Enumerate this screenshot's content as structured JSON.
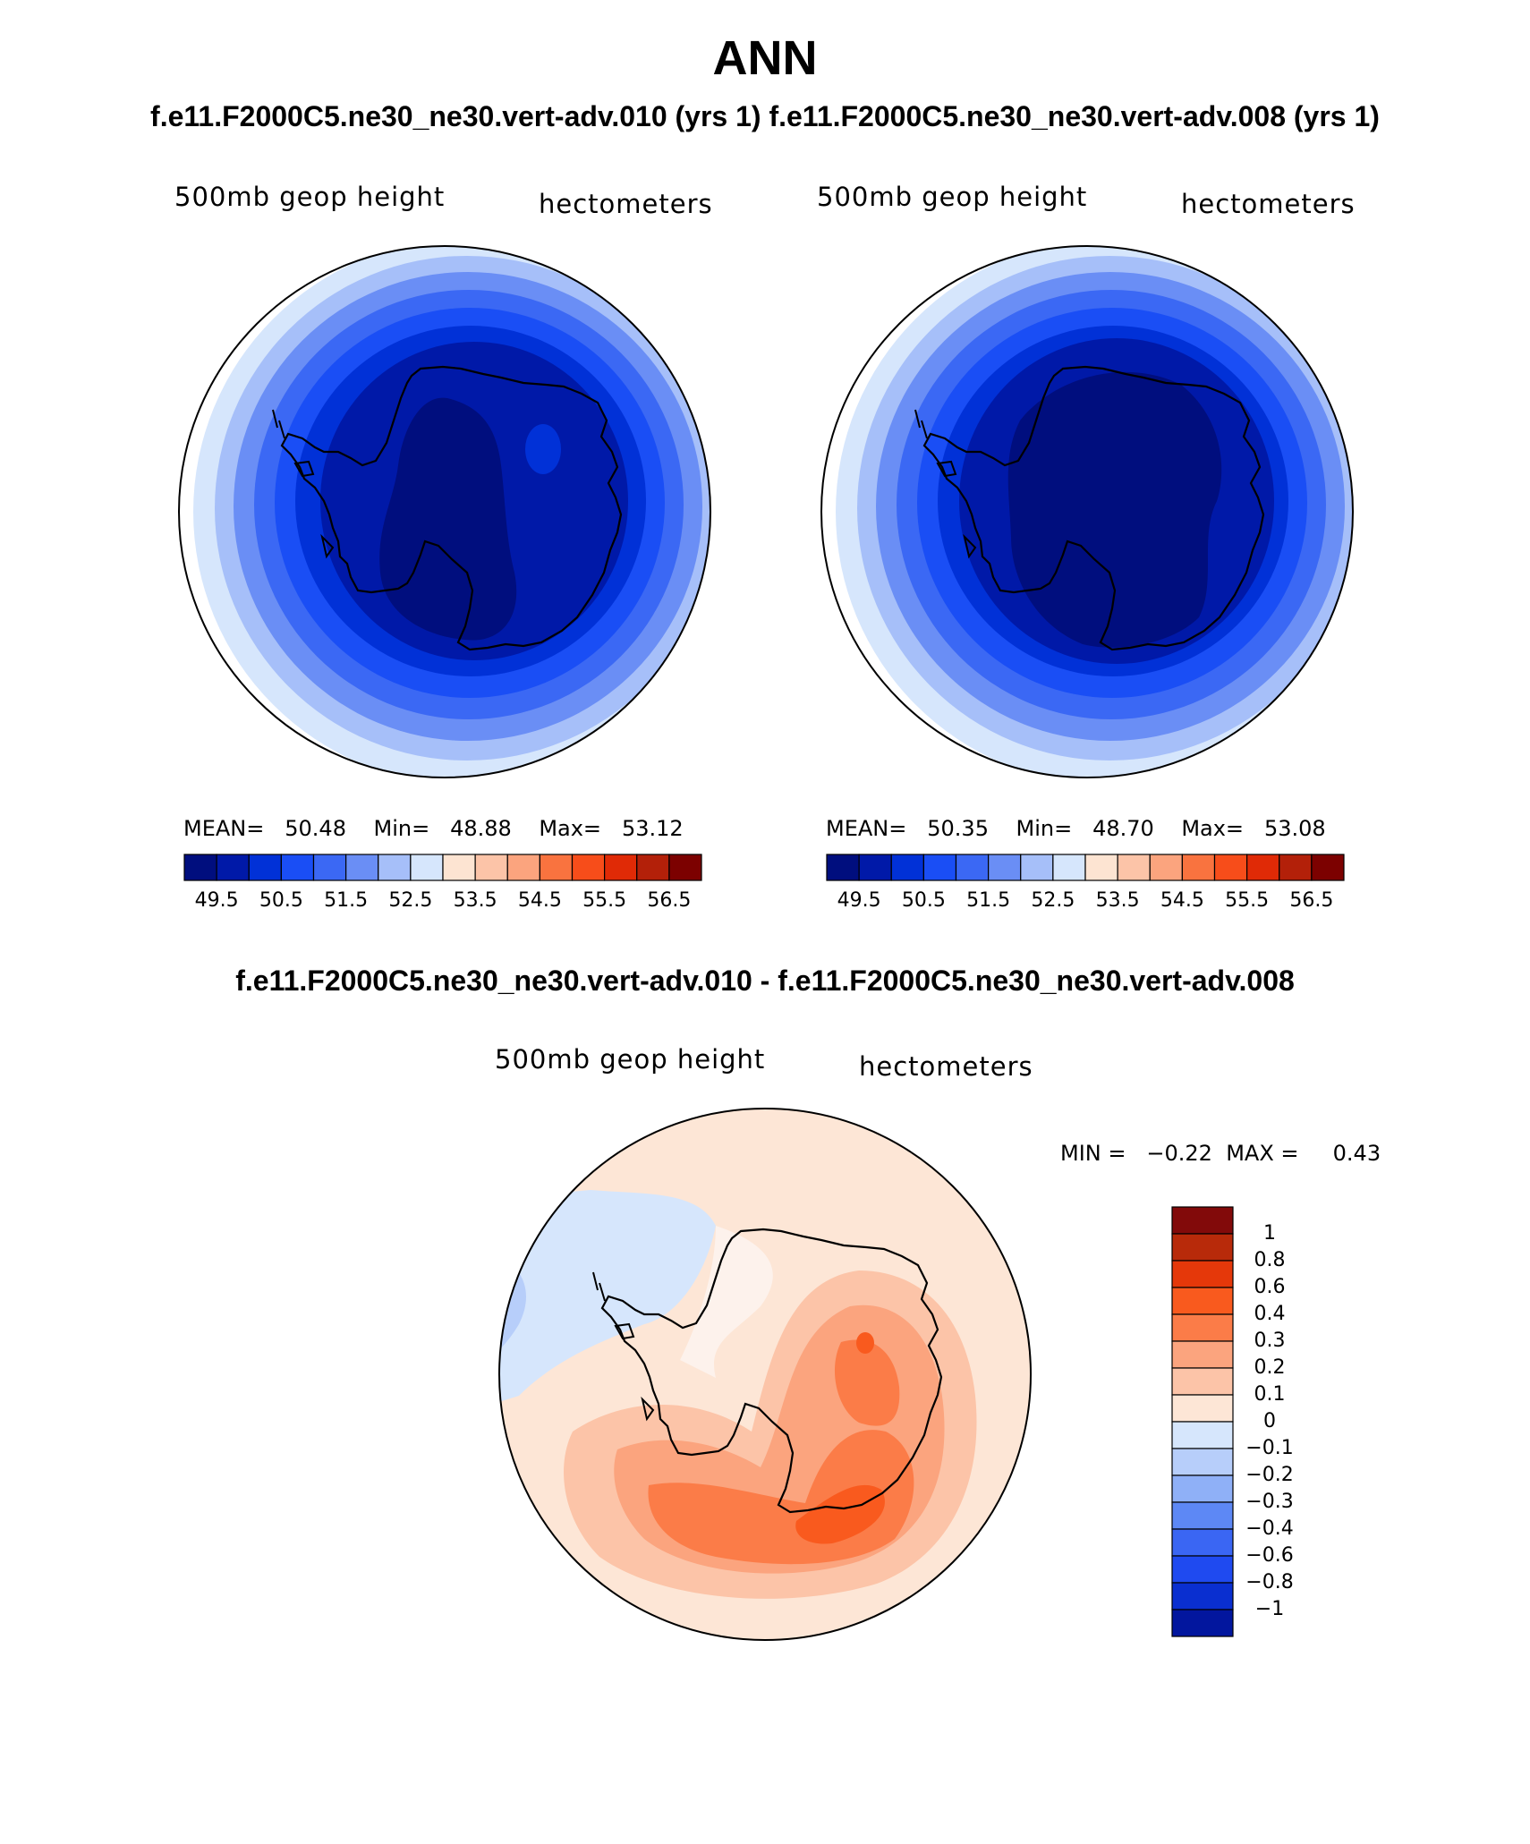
{
  "header": {
    "title": "ANN",
    "case_a": "f.e11.F2000C5.ne30_ne30.vert-adv.010 (yrs 1)",
    "case_b": "f.e11.F2000C5.ne30_ne30.vert-adv.008 (yrs 1)",
    "diff_title": "f.e11.F2000C5.ne30_ne30.vert-adv.010 - f.e11.F2000C5.ne30_ne30.vert-adv.008"
  },
  "panels": [
    {
      "variable": "500mb geop height",
      "units": "hectometers",
      "stats": {
        "mean_label": "MEAN=",
        "mean": "50.48",
        "min_label": "Min=",
        "min": "48.88",
        "max_label": "Max=",
        "max": "53.12"
      }
    },
    {
      "variable": "500mb geop height",
      "units": "hectometers",
      "stats": {
        "mean_label": "MEAN=",
        "mean": "50.35",
        "min_label": "Min=",
        "min": "48.70",
        "max_label": "Max=",
        "max": "53.08"
      }
    }
  ],
  "diff_panel": {
    "variable": "500mb geop height",
    "units": "hectometers",
    "min_label": "MIN =",
    "min": "−0.22",
    "max_label": "MAX =",
    "max": "0.43"
  },
  "abs_colorbar": {
    "colors": [
      "#000e7e",
      "#0019a8",
      "#0131d7",
      "#1a4ef5",
      "#3b68f4",
      "#6a8ef5",
      "#a6bff9",
      "#d6e6fc",
      "#fde4d2",
      "#fcc4a8",
      "#fba47e",
      "#f9733f",
      "#f74d1a",
      "#e02a06",
      "#b32009",
      "#7c0100"
    ],
    "ticks": [
      "49.5",
      "50.5",
      "51.5",
      "52.5",
      "53.5",
      "54.5",
      "55.5",
      "56.5"
    ]
  },
  "diff_colorbar": {
    "colors_top_to_bottom": [
      "#820a0a",
      "#b82a0a",
      "#e5380a",
      "#f95a1e",
      "#fb7c48",
      "#fba47e",
      "#fcc4a8",
      "#fde6d6",
      "#d6e6fc",
      "#b7cefa",
      "#8fb0f7",
      "#5d88f5",
      "#3a66f3",
      "#1f4af0",
      "#0a2fd0",
      "#02169e"
    ],
    "ticks": [
      "1",
      "0.8",
      "0.6",
      "0.4",
      "0.3",
      "0.2",
      "0.1",
      "0",
      "−0.1",
      "−0.2",
      "−0.3",
      "−0.4",
      "−0.6",
      "−0.8",
      "−1"
    ]
  }
}
